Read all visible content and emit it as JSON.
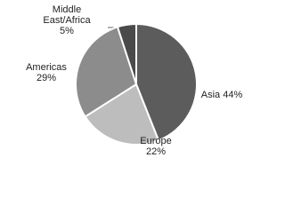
{
  "chart_data": {
    "type": "pie",
    "categories": [
      "Asia",
      "Europe",
      "Americas",
      "Middle East/Africa"
    ],
    "values": [
      44,
      22,
      29,
      5
    ],
    "value_labels": [
      "44%",
      "22%",
      "29%",
      "5%"
    ],
    "colors": [
      "#5c5c5c",
      "#bdbdbd",
      "#8c8c8c",
      "#4a4a4a"
    ]
  }
}
